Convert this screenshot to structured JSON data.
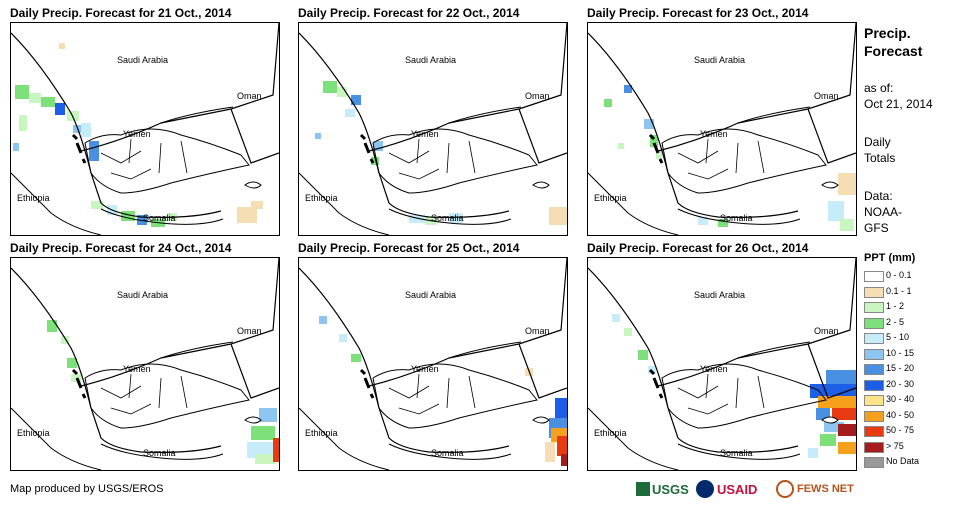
{
  "panels": [
    {
      "title": "Daily Precip. Forecast for 21 Oct., 2014"
    },
    {
      "title": "Daily Precip. Forecast for 22 Oct., 2014"
    },
    {
      "title": "Daily Precip. Forecast for 23 Oct., 2014"
    },
    {
      "title": "Daily Precip. Forecast for 24 Oct., 2014"
    },
    {
      "title": "Daily Precip. Forecast for 25 Oct., 2014"
    },
    {
      "title": "Daily Precip. Forecast for 26 Oct., 2014"
    }
  ],
  "map_labels": {
    "saudi": "Saudi Arabia",
    "oman": "Oman",
    "yemen": "Yemen",
    "ethiopia": "Ethiopia",
    "somalia": "Somalia"
  },
  "sidebar": {
    "title_line1": "Precip.",
    "title_line2": "Forecast",
    "asof_line1": "as of:",
    "asof_line2": "Oct 21, 2014",
    "daily_line1": "Daily",
    "daily_line2": "Totals",
    "data_line1": "Data:",
    "data_line2": "NOAA-",
    "data_line3": "GFS"
  },
  "legend": {
    "title": "PPT (mm)",
    "items": [
      {
        "label": "0 - 0.1",
        "color": "#ffffff"
      },
      {
        "label": "0.1 - 1",
        "color": "#f5deb3"
      },
      {
        "label": "1 - 2",
        "color": "#c8f5c0"
      },
      {
        "label": "2 - 5",
        "color": "#7ee07a"
      },
      {
        "label": "5 - 10",
        "color": "#c6ecf9"
      },
      {
        "label": "10 - 15",
        "color": "#8ec5f0"
      },
      {
        "label": "15 - 20",
        "color": "#4a90e2"
      },
      {
        "label": "20 - 30",
        "color": "#1c5ee6"
      },
      {
        "label": "30 - 40",
        "color": "#fde38a"
      },
      {
        "label": "40 - 50",
        "color": "#f5a11c"
      },
      {
        "label": "50 - 75",
        "color": "#e83a10"
      },
      {
        "label": "> 75",
        "color": "#a51c1c"
      },
      {
        "label": "No Data",
        "color": "#999999"
      }
    ]
  },
  "footer": {
    "credit": "Map produced by USGS/EROS",
    "logo_usgs": "USGS",
    "logo_usaid": "USAID",
    "logo_fews": "FEWS NET"
  }
}
